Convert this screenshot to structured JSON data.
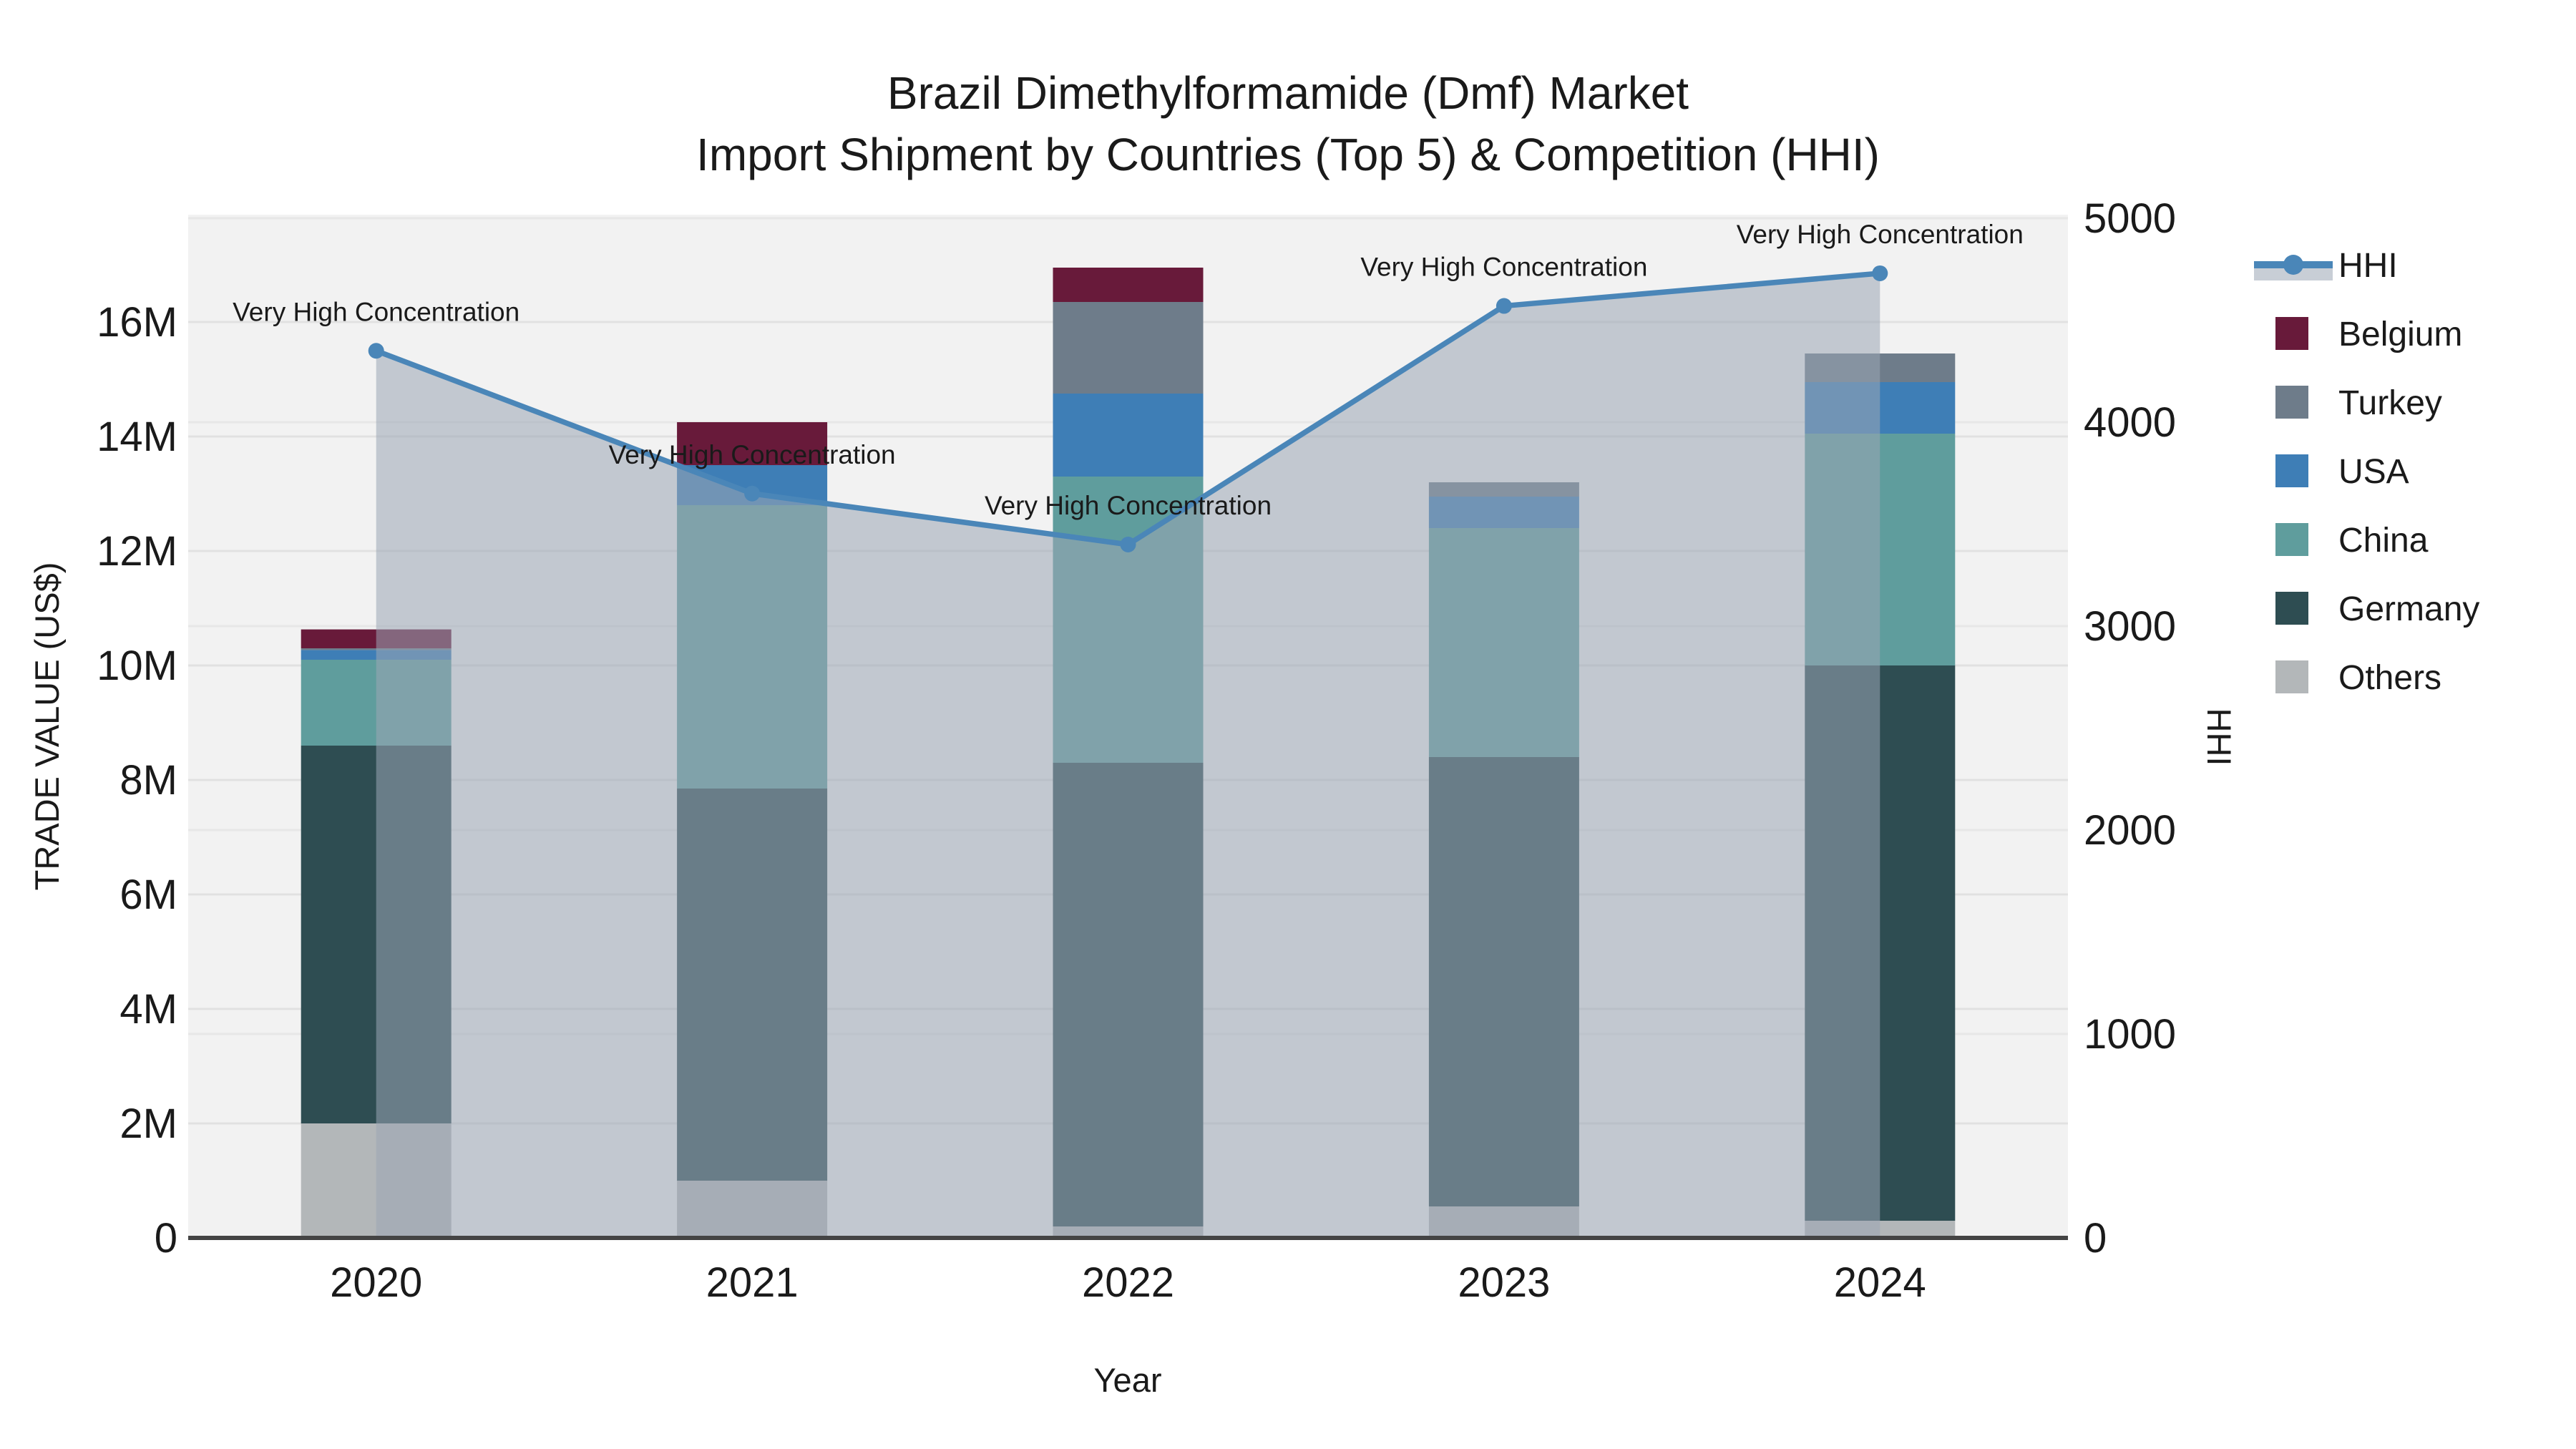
{
  "figure": {
    "title_line1": "Brazil Dimethylformamide (Dmf) Market",
    "title_line2": "Import Shipment by Countries (Top 5) & Competition (HHI)"
  },
  "chart_data": {
    "type": "combo-stacked-bar-plus-line",
    "title": "Brazil Dimethylformamide (Dmf) Market Import Shipment by Countries (Top 5) & Competition (HHI)",
    "xlabel": "Year",
    "ylabel_left": "TRADE VALUE (US$)",
    "ylabel_right": "HHI",
    "categories": [
      "2020",
      "2021",
      "2022",
      "2023",
      "2024"
    ],
    "stack_order_bottom_to_top": [
      "Others",
      "Germany",
      "China",
      "USA",
      "Turkey",
      "Belgium"
    ],
    "series": [
      {
        "name": "Others",
        "color": "#b3b7b9",
        "values_musd": [
          2.0,
          1.0,
          0.2,
          0.55,
          0.3
        ]
      },
      {
        "name": "Germany",
        "color": "#2e4d52",
        "values_musd": [
          6.6,
          6.85,
          8.1,
          7.85,
          9.7
        ]
      },
      {
        "name": "China",
        "color": "#5f9d9d",
        "values_musd": [
          1.5,
          4.95,
          5.0,
          4.0,
          4.05
        ]
      },
      {
        "name": "USA",
        "color": "#3e7eb6",
        "values_musd": [
          0.17,
          0.7,
          1.45,
          0.55,
          0.9
        ]
      },
      {
        "name": "Turkey",
        "color": "#6e7c8a",
        "values_musd": [
          0.03,
          0.0,
          1.6,
          0.25,
          0.5
        ]
      },
      {
        "name": "Belgium",
        "color": "#681a3a",
        "values_musd": [
          0.33,
          0.75,
          0.6,
          0.0,
          0.0
        ]
      }
    ],
    "bar_totals_musd": [
      10.63,
      14.25,
      16.95,
      13.2,
      15.45
    ],
    "hhi_series": {
      "name": "HHI",
      "color": "#4a86b8",
      "fill_color": "rgba(154,165,181,0.55)",
      "values": [
        4350,
        3650,
        3400,
        4570,
        4730
      ],
      "point_labels": [
        "Very High Concentration",
        "Very High Concentration",
        "Very High Concentration",
        "Very High Concentration",
        "Very High Concentration"
      ]
    },
    "y_left_ticks": [
      "0",
      "2M",
      "4M",
      "6M",
      "8M",
      "10M",
      "12M",
      "14M",
      "16M"
    ],
    "y_left_tick_values_musd": [
      0,
      2,
      4,
      6,
      8,
      10,
      12,
      14,
      16
    ],
    "y_left_range_musd": [
      0,
      17.9
    ],
    "y_right_ticks": [
      "0",
      "1000",
      "2000",
      "3000",
      "4000",
      "5000"
    ],
    "y_right_tick_values": [
      0,
      1000,
      2000,
      3000,
      4000,
      5000
    ],
    "y_right_range": [
      0,
      5000
    ],
    "grid": true,
    "plot_background": "#f2f2f2",
    "legend_position": "right",
    "legend_order": [
      "HHI",
      "Belgium",
      "Turkey",
      "USA",
      "China",
      "Germany",
      "Others"
    ]
  }
}
